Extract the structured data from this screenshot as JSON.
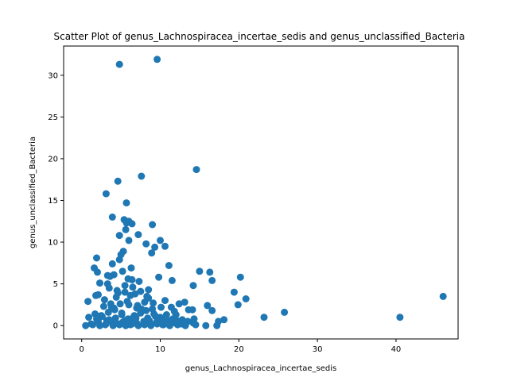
{
  "chart_data": {
    "type": "scatter",
    "title": "Scatter Plot of genus_Lachnospiracea_incertae_sedis and genus_unclassified_Bacteria",
    "xlabel": "genus_Lachnospiracea_incertae_sedis",
    "ylabel": "genus_unclassified_Bacteria",
    "xlim": [
      -2.3,
      47.9
    ],
    "ylim": [
      -1.6,
      33.5
    ],
    "xticks": [
      0,
      10,
      20,
      30,
      40
    ],
    "yticks": [
      0,
      5,
      10,
      15,
      20,
      25,
      30
    ],
    "grid": false,
    "marker_color": "#1f77b4",
    "series": [
      {
        "x": [
          4.8,
          9.6,
          14.6,
          7.6,
          4.6,
          3.1,
          5.7,
          3.9,
          5.4,
          6.0,
          5.7,
          6.4,
          9.0,
          5.6,
          7.2,
          4.8,
          6.0,
          10.0,
          8.2,
          10.6,
          9.3,
          8.9,
          5.3,
          5.0,
          1.9,
          3.9,
          4.8,
          11.1,
          1.6,
          6.3,
          2.0,
          3.3,
          5.2,
          4.1,
          3.6,
          5.9,
          15.0,
          16.3,
          20.2,
          16.6,
          9.8,
          11.5,
          14.2,
          7.3,
          6.4,
          2.3,
          3.3,
          0.8,
          1.8,
          4.6,
          5.5,
          2.1,
          19.4,
          20.9,
          19.9,
          16.0,
          16.6,
          18.1,
          17.4,
          23.2,
          25.8,
          46.0,
          40.5,
          2.5,
          3.2,
          4.1,
          5.1,
          6.5,
          7.1,
          8.2,
          9.4,
          10.2,
          11.4,
          12.0,
          12.8,
          13.6,
          14.3,
          2.9,
          3.7,
          4.4,
          5.8,
          6.8,
          7.6,
          8.5,
          9.1,
          10.6,
          11.8,
          12.4,
          13.1,
          14.1,
          1.2,
          2.1,
          3.0,
          3.9,
          4.7,
          5.5,
          6.2,
          7.0,
          7.9,
          8.7,
          9.5,
          10.3,
          11.1,
          11.9,
          12.7,
          13.5,
          14.5,
          0.5,
          1.4,
          2.3,
          3.1,
          4.0,
          4.8,
          5.6,
          6.4,
          7.2,
          8.0,
          8.8,
          9.6,
          10.4,
          11.2,
          12.2,
          13.2,
          15.8,
          17.2,
          0.9,
          1.7,
          2.6,
          3.4,
          4.3,
          5.1,
          5.9,
          6.7,
          7.5,
          8.4,
          9.2,
          10.0,
          10.8,
          11.6,
          3.5,
          4.5,
          5.5,
          6.5,
          7.5,
          8.5,
          2.8,
          3.8,
          4.9,
          6.0,
          7.0,
          8.0,
          9.0,
          2.2,
          4.2,
          6.2,
          8.3,
          10.1,
          12.1,
          14.2,
          1.9,
          3.5,
          5.2,
          6.9,
          8.6,
          10.3
        ],
        "y": [
          31.3,
          31.9,
          18.7,
          17.9,
          17.3,
          15.8,
          14.7,
          13.0,
          12.7,
          12.5,
          12.3,
          12.2,
          12.1,
          11.5,
          10.9,
          10.8,
          10.2,
          10.2,
          9.8,
          9.5,
          9.4,
          8.7,
          8.9,
          8.5,
          8.1,
          7.4,
          7.9,
          7.2,
          6.9,
          6.9,
          6.4,
          6.0,
          6.5,
          6.1,
          5.9,
          5.6,
          6.5,
          6.4,
          5.8,
          5.4,
          5.8,
          5.4,
          4.8,
          5.3,
          5.5,
          5.1,
          5.0,
          2.9,
          3.6,
          3.9,
          4.0,
          3.7,
          4.0,
          3.2,
          2.5,
          2.4,
          1.8,
          0.7,
          0.5,
          1.0,
          1.6,
          3.5,
          1.0,
          1.2,
          0.6,
          2.1,
          1.5,
          0.9,
          2.4,
          1.8,
          1.1,
          0.5,
          2.2,
          1.3,
          0.7,
          1.9,
          0.8,
          3.1,
          2.6,
          3.4,
          2.9,
          3.8,
          2.0,
          3.3,
          2.7,
          3.0,
          1.7,
          2.6,
          2.8,
          1.9,
          0.2,
          0.5,
          0.1,
          0.4,
          0.2,
          0.6,
          0.1,
          0.3,
          0.5,
          0.2,
          0.4,
          0.1,
          0.6,
          0.3,
          0.2,
          0.5,
          0.1,
          0.0,
          0.1,
          0.0,
          0.2,
          0.0,
          0.1,
          0.0,
          0.2,
          0.0,
          0.1,
          0.0,
          0.2,
          0.1,
          0.0,
          0.1,
          0.0,
          0.0,
          0.0,
          1.0,
          1.4,
          1.1,
          1.6,
          0.9,
          1.3,
          0.8,
          1.2,
          1.5,
          0.9,
          1.4,
          1.0,
          1.3,
          0.8,
          4.5,
          4.2,
          4.8,
          4.6,
          4.1,
          4.3,
          2.3,
          2.2,
          2.6,
          2.5,
          2.1,
          2.8,
          2.0,
          1.1,
          1.9,
          3.6,
          3.5,
          2.2,
          0.6,
          0.3,
          0.8,
          0.7,
          0.4,
          0.9,
          0.6,
          0.7
        ]
      }
    ]
  }
}
